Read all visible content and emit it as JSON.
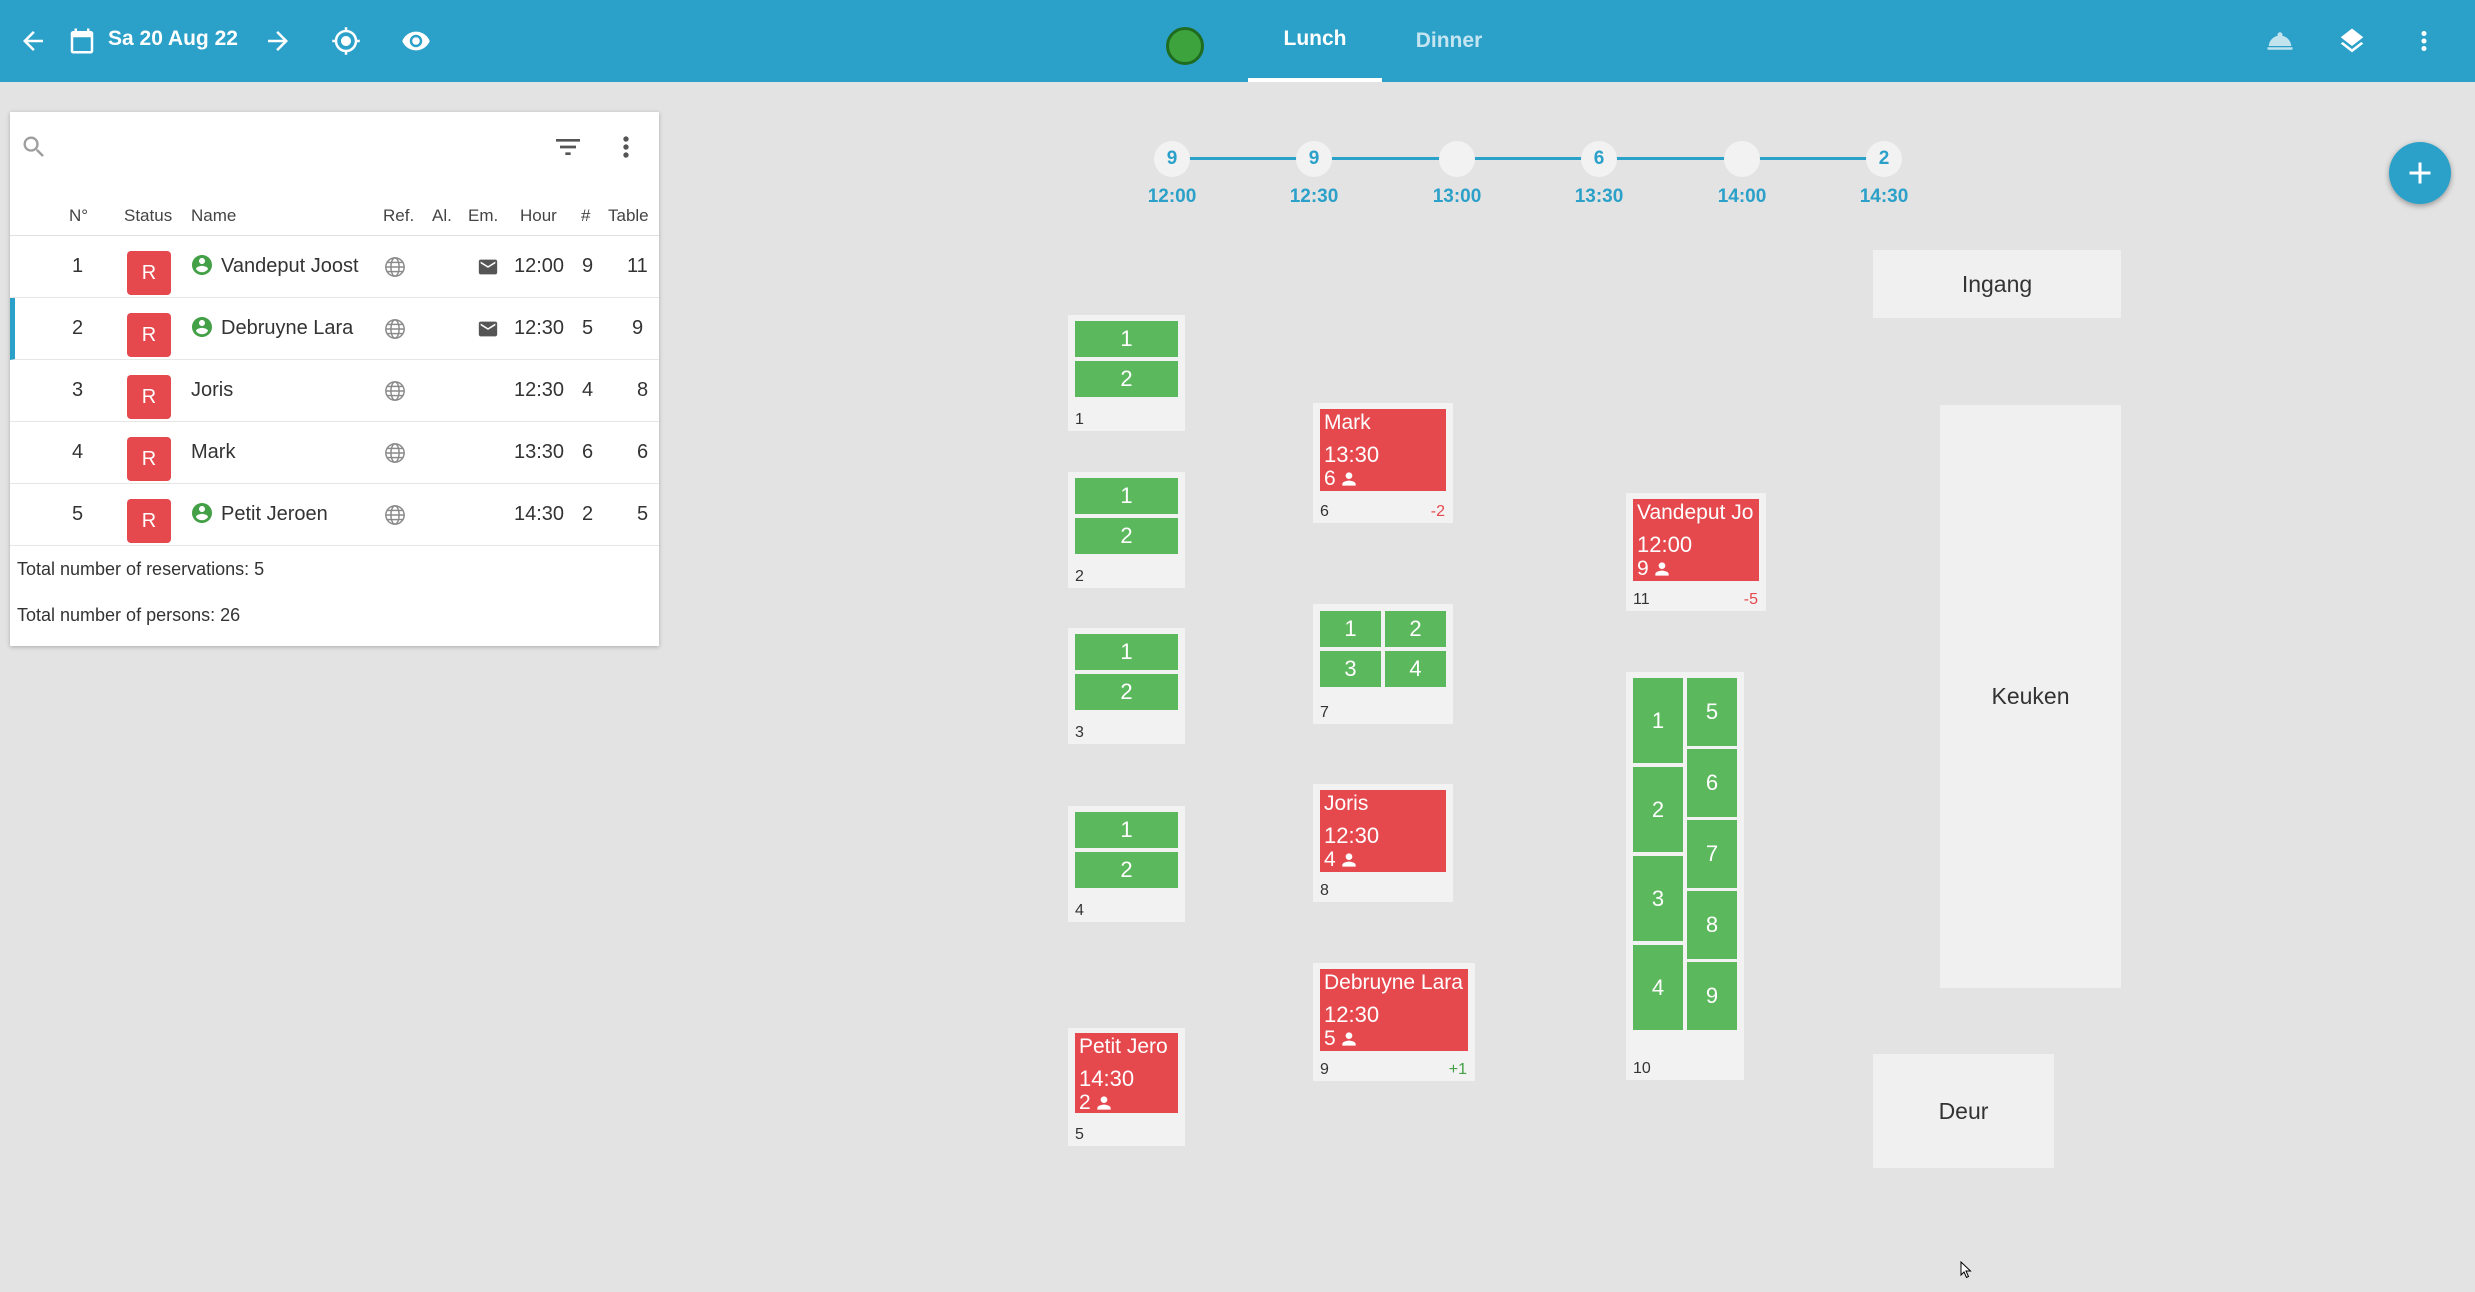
{
  "toolbar": {
    "date": "Sa 20 Aug 22",
    "tabs": {
      "lunch": "Lunch",
      "dinner": "Dinner"
    },
    "status_color": "#3da33d",
    "accent": "#2ba1c9"
  },
  "reservations": {
    "search_placeholder": "",
    "columns": {
      "nr": "N°",
      "status": "Status",
      "name": "Name",
      "ref": "Ref.",
      "al": "Al.",
      "em": "Em.",
      "hour": "Hour",
      "count": "#",
      "table": "Table"
    },
    "rows": [
      {
        "nr": "1",
        "status": "R",
        "name": "Vandeput Joost",
        "hour": "12:00",
        "count": "9",
        "table": "11"
      },
      {
        "nr": "2",
        "status": "R",
        "name": "Debruyne Lara",
        "hour": "12:30",
        "count": "5",
        "table": "9"
      },
      {
        "nr": "3",
        "status": "R",
        "name": "Joris",
        "hour": "12:30",
        "count": "4",
        "table": "8"
      },
      {
        "nr": "4",
        "status": "R",
        "name": "Mark",
        "hour": "13:30",
        "count": "6",
        "table": "6"
      },
      {
        "nr": "5",
        "status": "R",
        "name": "Petit Jeroen",
        "hour": "14:30",
        "count": "2",
        "table": "5"
      }
    ],
    "total_reservations": "Total number of reservations: 5",
    "total_persons": "Total number of persons: 26"
  },
  "timeline": [
    {
      "count": "9",
      "time": "12:00"
    },
    {
      "count": "9",
      "time": "12:30"
    },
    {
      "count": "",
      "time": "13:00"
    },
    {
      "count": "6",
      "time": "13:30"
    },
    {
      "count": "",
      "time": "14:00"
    },
    {
      "count": "2",
      "time": "14:30"
    }
  ],
  "floor": {
    "areas": {
      "ingang": "Ingang",
      "keuken": "Keuken",
      "deur": "Deur"
    },
    "tables": {
      "t1": {
        "num": "1",
        "seats": [
          "1",
          "2"
        ]
      },
      "t2": {
        "num": "2",
        "seats": [
          "1",
          "2"
        ]
      },
      "t3": {
        "num": "3",
        "seats": [
          "1",
          "2"
        ]
      },
      "t4": {
        "num": "4",
        "seats": [
          "1",
          "2"
        ]
      },
      "t5": {
        "num": "5",
        "name": "Petit Jero",
        "time": "14:30",
        "persons": "2"
      },
      "t6": {
        "num": "6",
        "name": "Mark",
        "time": "13:30",
        "persons": "6",
        "diff": "-2"
      },
      "t7": {
        "num": "7",
        "seats": [
          "1",
          "2",
          "3",
          "4"
        ]
      },
      "t8": {
        "num": "8",
        "name": "Joris",
        "time": "12:30",
        "persons": "4"
      },
      "t9": {
        "num": "9",
        "name": "Debruyne Lara",
        "time": "12:30",
        "persons": "5",
        "diff": "+1"
      },
      "t10": {
        "num": "10",
        "seats_left": [
          "1",
          "2",
          "3",
          "4"
        ],
        "seats_right": [
          "5",
          "6",
          "7",
          "8",
          "9"
        ]
      },
      "t11": {
        "num": "11",
        "name": "Vandeput Jo",
        "time": "12:00",
        "persons": "9",
        "diff": "-5"
      }
    }
  }
}
